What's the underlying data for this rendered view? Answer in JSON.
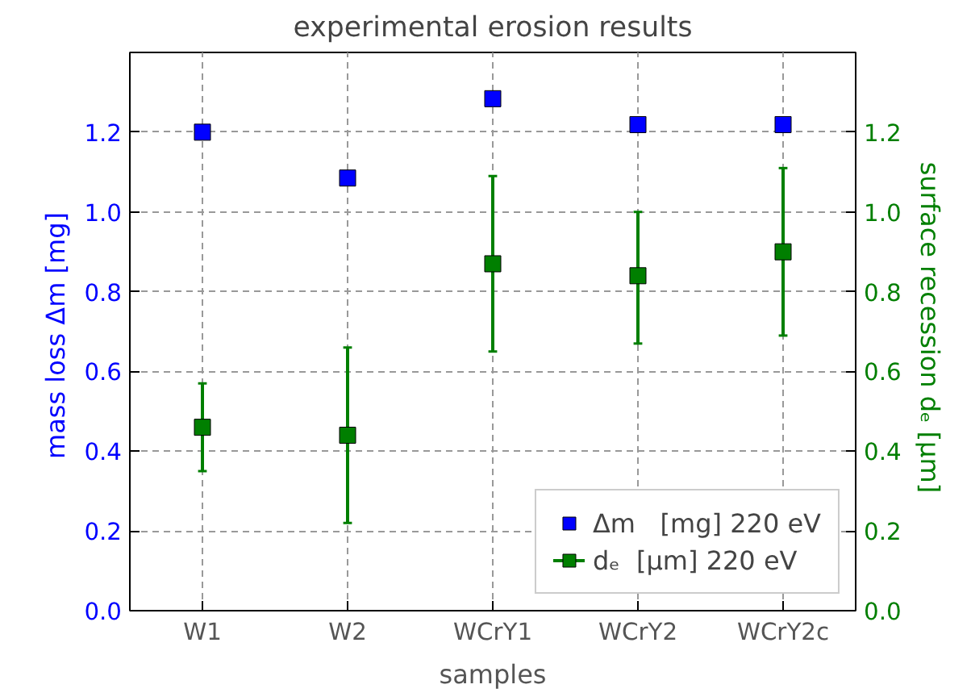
{
  "chart_data": {
    "type": "scatter",
    "title": "experimental erosion results",
    "xlabel": "samples",
    "ylabel": "mass loss Δm  [mg]",
    "y2label": "surface recession dₑ  [μm]",
    "categories": [
      "W1",
      "W2",
      "WCrY1",
      "WCrY2",
      "WCrY2c"
    ],
    "series": [
      {
        "name": "Δm   [mg] 220 eV",
        "color": "#0000ff",
        "values": [
          1.2,
          1.085,
          1.284,
          1.219,
          1.219
        ]
      },
      {
        "name": "dₑ  [μm] 220 eV",
        "color": "#007f00",
        "axis": "y2",
        "values": [
          0.46,
          0.44,
          0.87,
          0.84,
          0.9
        ],
        "errors": [
          [
            0.35,
            0.57
          ],
          [
            0.22,
            0.66
          ],
          [
            0.65,
            1.09
          ],
          [
            0.67,
            1.0
          ],
          [
            0.69,
            1.11
          ]
        ]
      }
    ],
    "ylim": [
      0,
      1.4
    ],
    "yticks": [
      {
        "value": 0,
        "label": "0.0"
      },
      0.2,
      0.4,
      0.6,
      0.8,
      {
        "value": 1,
        "label": "1.0"
      },
      1.2
    ],
    "y2lim": [
      0,
      1.4
    ],
    "y2ticks": [
      {
        "value": 0,
        "label": "0.0"
      },
      0.2,
      0.4,
      0.6,
      0.8,
      {
        "value": 1,
        "label": "1.0"
      },
      1.2
    ],
    "grid": true,
    "legend": "bottom right",
    "marker": "square"
  }
}
